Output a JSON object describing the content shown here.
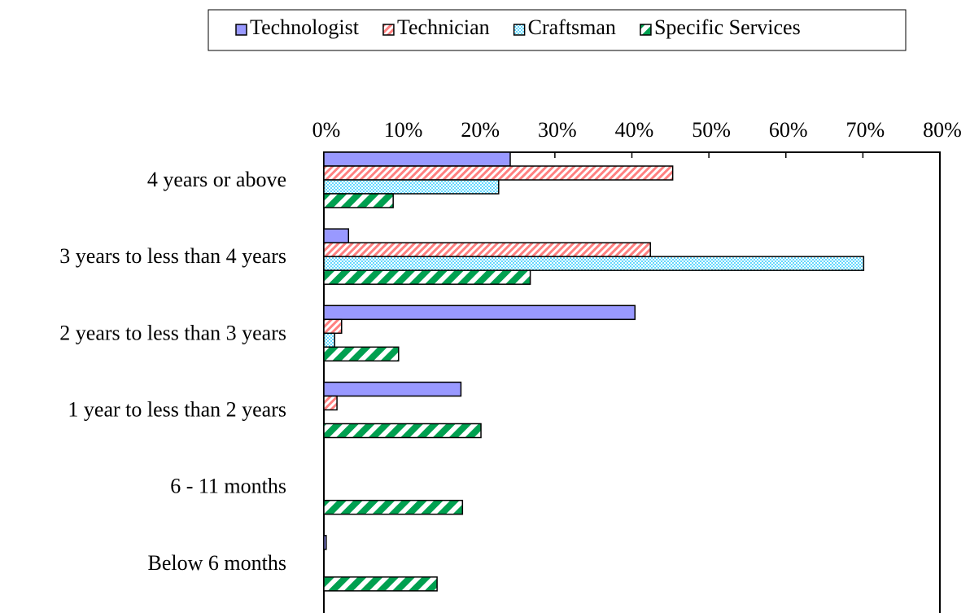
{
  "chart_data": {
    "type": "hbar",
    "categories": [
      "4 years or above",
      "3 years to less than 4 years",
      "2 years to less than 3 years",
      "1 year to less than 2 years",
      "6 - 11 months",
      "Below 6 months"
    ],
    "series": [
      {
        "name": "Technologist",
        "color": "#9999ff",
        "pattern": "solid",
        "values": [
          24.2,
          3.2,
          40.4,
          17.8,
          0,
          0.3
        ]
      },
      {
        "name": "Technician",
        "color": "#ff8080",
        "pattern": "stripes",
        "values": [
          45.3,
          42.4,
          2.3,
          1.7,
          0,
          0
        ]
      },
      {
        "name": "Craftsman",
        "color": "#33ccff",
        "pattern": "dots",
        "values": [
          22.7,
          70.1,
          1.4,
          0,
          0,
          0
        ]
      },
      {
        "name": "Specific Services",
        "color": "#00a050",
        "pattern": "wide-stripes",
        "values": [
          9.0,
          26.8,
          9.7,
          20.4,
          18.0,
          14.7
        ]
      }
    ],
    "xlim": [
      0,
      80
    ],
    "xticks": [
      {
        "value": 0,
        "label": "0%"
      },
      {
        "value": 10,
        "label": "10%"
      },
      {
        "value": 20,
        "label": "20%"
      },
      {
        "value": 30,
        "label": "30%"
      },
      {
        "value": 40,
        "label": "40%"
      },
      {
        "value": 50,
        "label": "50%"
      },
      {
        "value": 60,
        "label": "60%"
      },
      {
        "value": 70,
        "label": "70%"
      },
      {
        "value": 80,
        "label": "80%"
      }
    ],
    "legend": "top",
    "grid": false
  }
}
